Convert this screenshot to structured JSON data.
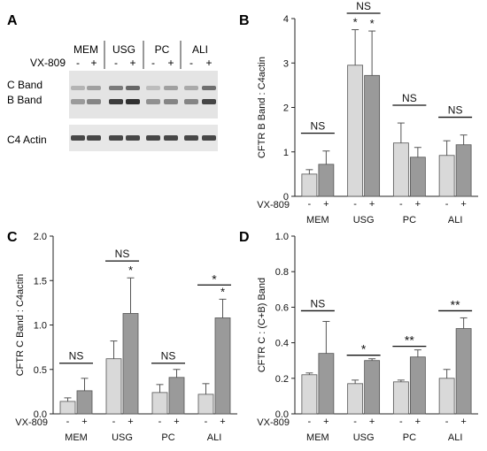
{
  "panels": {
    "A": {
      "letter": "A",
      "groups": [
        "MEM",
        "USG",
        "PC",
        "ALI"
      ],
      "treatment_label": "VX-809",
      "treatment_signs": [
        "-",
        "+",
        "-",
        "+",
        "-",
        "+",
        "-",
        "+"
      ],
      "row_labels": [
        "C Band",
        "B Band",
        "C4 Actin"
      ]
    },
    "B": {
      "letter": "B"
    },
    "C": {
      "letter": "C"
    },
    "D": {
      "letter": "D"
    }
  },
  "chart_data": [
    {
      "panel": "B",
      "type": "bar",
      "categories": [
        "MEM",
        "USG",
        "PC",
        "ALI"
      ],
      "treatment_label": "VX-809",
      "treatment_signs": [
        "-",
        "+"
      ],
      "ylabel": "CFTR B Band : C4actin",
      "ylim": [
        0,
        4
      ],
      "yticks": [
        "0",
        "1",
        "2",
        "3",
        "4"
      ],
      "series": [
        {
          "values": [
            0.5,
            2.95,
            1.2,
            0.92
          ],
          "errors": [
            0.1,
            0.8,
            0.45,
            0.33
          ],
          "color": "#d9d9d9"
        },
        {
          "values": [
            0.72,
            2.72,
            0.88,
            1.16
          ],
          "errors": [
            0.3,
            1.0,
            0.22,
            0.22
          ],
          "color": "#9a9a9a"
        }
      ],
      "significance": [
        {
          "group": 0,
          "label": "NS",
          "y": 1.42
        },
        {
          "group": 1,
          "label": "NS",
          "y": 4.12
        },
        {
          "group": 2,
          "label": "NS",
          "y": 2.05
        },
        {
          "group": 3,
          "label": "NS",
          "y": 1.78
        }
      ],
      "bar_stars": [
        {
          "group": 1,
          "series": 0,
          "label": "*"
        },
        {
          "group": 1,
          "series": 1,
          "label": "*"
        }
      ]
    },
    {
      "panel": "C",
      "type": "bar",
      "categories": [
        "MEM",
        "USG",
        "PC",
        "ALI"
      ],
      "treatment_label": "VX-809",
      "treatment_signs": [
        "-",
        "+"
      ],
      "ylabel": "CFTR C Band : C4actin",
      "ylim": [
        0,
        2
      ],
      "yticks": [
        "0.0",
        "0.5",
        "1.0",
        "1.5",
        "2.0"
      ],
      "series": [
        {
          "values": [
            0.14,
            0.62,
            0.24,
            0.22
          ],
          "errors": [
            0.04,
            0.2,
            0.09,
            0.12
          ],
          "color": "#d9d9d9"
        },
        {
          "values": [
            0.26,
            1.13,
            0.41,
            1.08
          ],
          "errors": [
            0.14,
            0.4,
            0.09,
            0.21
          ],
          "color": "#9a9a9a"
        }
      ],
      "significance": [
        {
          "group": 0,
          "label": "NS",
          "y": 0.57
        },
        {
          "group": 1,
          "label": "NS",
          "y": 1.72
        },
        {
          "group": 2,
          "label": "NS",
          "y": 0.57
        },
        {
          "group": 3,
          "label": "*",
          "y": 1.45
        }
      ],
      "bar_stars": [
        {
          "group": 1,
          "series": 1,
          "label": "*"
        },
        {
          "group": 3,
          "series": 1,
          "label": "*"
        }
      ]
    },
    {
      "panel": "D",
      "type": "bar",
      "categories": [
        "MEM",
        "USG",
        "PC",
        "ALI"
      ],
      "treatment_label": "VX-809",
      "treatment_signs": [
        "-",
        "+"
      ],
      "ylabel": "CFTR C : (C+B) Band",
      "ylim": [
        0,
        1
      ],
      "yticks": [
        "0.0",
        "0.2",
        "0.4",
        "0.6",
        "0.8",
        "1.0"
      ],
      "series": [
        {
          "values": [
            0.22,
            0.17,
            0.18,
            0.2
          ],
          "errors": [
            0.01,
            0.02,
            0.01,
            0.05
          ],
          "color": "#d9d9d9"
        },
        {
          "values": [
            0.34,
            0.3,
            0.32,
            0.48
          ],
          "errors": [
            0.18,
            0.01,
            0.04,
            0.06
          ],
          "color": "#9a9a9a"
        }
      ],
      "significance": [
        {
          "group": 0,
          "label": "NS",
          "y": 0.58
        },
        {
          "group": 1,
          "label": "*",
          "y": 0.33
        },
        {
          "group": 2,
          "label": "**",
          "y": 0.38
        },
        {
          "group": 3,
          "label": "**",
          "y": 0.58
        }
      ],
      "bar_stars": []
    }
  ]
}
